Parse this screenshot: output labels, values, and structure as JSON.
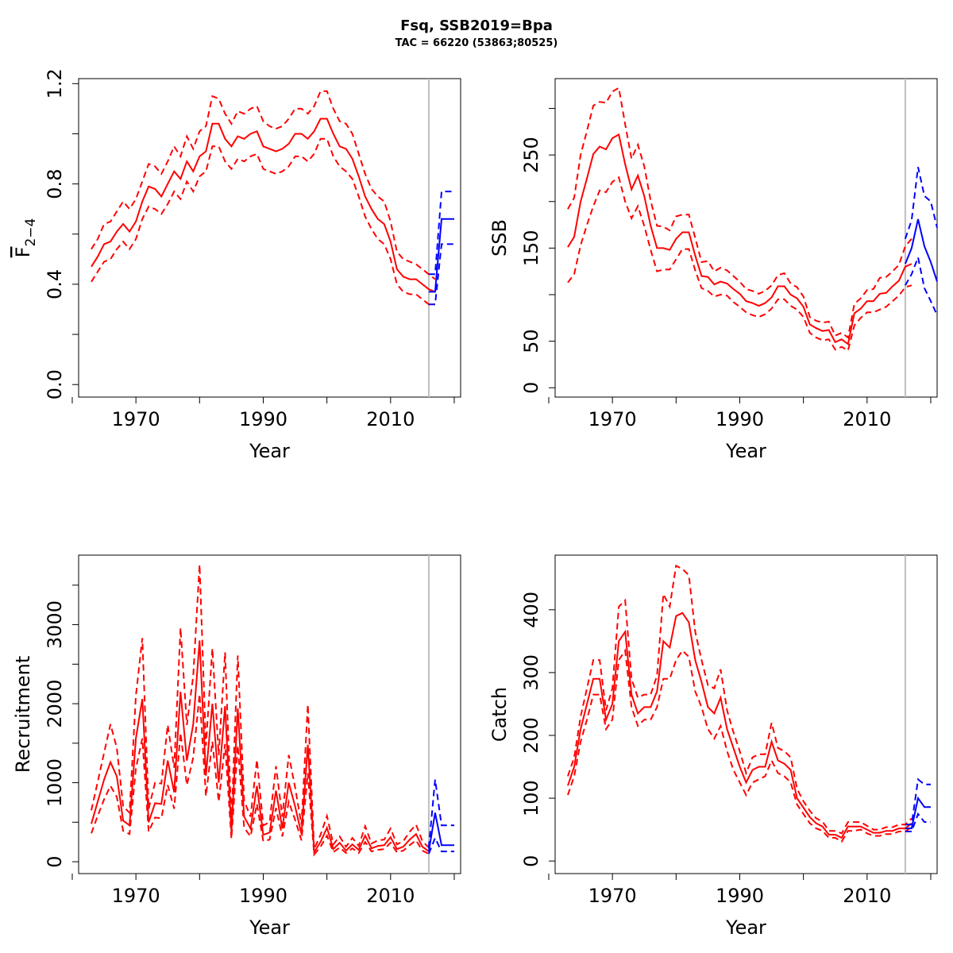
{
  "title": "Fsq, SSB2019=Bpa",
  "subtitle": "TAC = 66220 (53863;80525)",
  "colors": {
    "history": "#ff0000",
    "forecast": "#0000ff",
    "divider": "#bebebe",
    "axis": "#000000"
  },
  "divider_year": 2016,
  "chart_data": [
    {
      "type": "line",
      "id": "fbar",
      "ylabel": "F",
      "ylabel_sub": "2−4",
      "xlabel": "Year",
      "xlim": [
        1961,
        2021
      ],
      "ylim": [
        -0.05,
        1.22
      ],
      "xticks": [
        1960,
        1970,
        1980,
        1990,
        2000,
        2010,
        2020
      ],
      "xticklabels": [
        "1970",
        "1990",
        "2010"
      ],
      "xticklabel_values": [
        1970,
        1990,
        2010
      ],
      "yticks": [
        0.0,
        0.2,
        0.4,
        0.6,
        0.8,
        1.0,
        1.2
      ],
      "yticklabels": [
        "0.0",
        "0.4",
        "0.8",
        "1.2"
      ],
      "yticklabel_values": [
        0.0,
        0.4,
        0.8,
        1.2
      ],
      "history": {
        "x_start": 1963,
        "mid": [
          0.47,
          0.51,
          0.56,
          0.57,
          0.61,
          0.64,
          0.61,
          0.65,
          0.73,
          0.79,
          0.78,
          0.75,
          0.8,
          0.85,
          0.82,
          0.89,
          0.85,
          0.91,
          0.93,
          1.04,
          1.04,
          0.98,
          0.95,
          0.99,
          0.98,
          1.0,
          1.01,
          0.95,
          0.94,
          0.93,
          0.94,
          0.96,
          1.0,
          1.0,
          0.98,
          1.01,
          1.06,
          1.06,
          1.0,
          0.95,
          0.94,
          0.9,
          0.83,
          0.75,
          0.7,
          0.66,
          0.64,
          0.57,
          0.46,
          0.43,
          0.42,
          0.42,
          0.4,
          0.38,
          0.37
        ],
        "lower": [
          0.41,
          0.45,
          0.49,
          0.5,
          0.54,
          0.57,
          0.54,
          0.58,
          0.66,
          0.71,
          0.7,
          0.68,
          0.72,
          0.77,
          0.74,
          0.81,
          0.77,
          0.83,
          0.85,
          0.95,
          0.95,
          0.89,
          0.86,
          0.9,
          0.89,
          0.91,
          0.92,
          0.86,
          0.85,
          0.84,
          0.85,
          0.87,
          0.91,
          0.91,
          0.89,
          0.92,
          0.98,
          0.98,
          0.91,
          0.87,
          0.85,
          0.82,
          0.75,
          0.67,
          0.62,
          0.58,
          0.56,
          0.5,
          0.4,
          0.37,
          0.36,
          0.36,
          0.34,
          0.32,
          0.32
        ],
        "upper": [
          0.54,
          0.58,
          0.64,
          0.65,
          0.69,
          0.73,
          0.7,
          0.74,
          0.81,
          0.88,
          0.87,
          0.84,
          0.89,
          0.95,
          0.91,
          0.99,
          0.94,
          1.01,
          1.03,
          1.15,
          1.14,
          1.08,
          1.04,
          1.09,
          1.08,
          1.1,
          1.11,
          1.05,
          1.03,
          1.02,
          1.03,
          1.06,
          1.1,
          1.1,
          1.08,
          1.11,
          1.17,
          1.17,
          1.1,
          1.05,
          1.04,
          1.0,
          0.92,
          0.84,
          0.78,
          0.75,
          0.73,
          0.65,
          0.53,
          0.5,
          0.49,
          0.48,
          0.46,
          0.44,
          0.42
        ]
      },
      "forecast": {
        "x": [
          2016,
          2017,
          2018,
          2019,
          2020
        ],
        "mid": [
          0.37,
          0.37,
          0.66,
          0.66,
          0.66
        ],
        "lower": [
          0.32,
          0.32,
          0.56,
          0.56,
          0.56
        ],
        "upper": [
          0.44,
          0.44,
          0.77,
          0.77,
          0.77
        ]
      }
    },
    {
      "type": "line",
      "id": "ssb",
      "ylabel": "SSB",
      "ylabel_sub": "",
      "xlabel": "Year",
      "xlim": [
        1961,
        2021
      ],
      "ylim": [
        -10,
        332
      ],
      "xticks": [
        1960,
        1970,
        1980,
        1990,
        2000,
        2010,
        2020
      ],
      "xticklabels": [
        "1970",
        "1990",
        "2010"
      ],
      "xticklabel_values": [
        1970,
        1990,
        2010
      ],
      "yticks": [
        0,
        50,
        100,
        150,
        200,
        250,
        300
      ],
      "yticklabels": [
        "0",
        "50",
        "150",
        "250"
      ],
      "yticklabel_values": [
        0,
        50,
        150,
        250
      ],
      "history": {
        "x_start": 1963,
        "mid": [
          151,
          162,
          200,
          225,
          251,
          259,
          256,
          268,
          272,
          240,
          213,
          228,
          206,
          174,
          150,
          150,
          148,
          160,
          167,
          167,
          142,
          120,
          119,
          111,
          114,
          112,
          106,
          101,
          93,
          91,
          88,
          91,
          97,
          109,
          109,
          100,
          96,
          87,
          68,
          64,
          61,
          62,
          49,
          52,
          47,
          80,
          85,
          93,
          93,
          101,
          102,
          109,
          115,
          130,
          133
        ],
        "lower": [
          113,
          122,
          153,
          175,
          195,
          212,
          210,
          221,
          226,
          200,
          182,
          195,
          174,
          148,
          125,
          127,
          127,
          138,
          149,
          149,
          126,
          107,
          104,
          98,
          100,
          99,
          92,
          87,
          81,
          78,
          76,
          79,
          85,
          95,
          95,
          88,
          84,
          76,
          59,
          54,
          51,
          52,
          41,
          44,
          40,
          67,
          75,
          81,
          81,
          84,
          87,
          93,
          99,
          108,
          110
        ],
        "upper": [
          192,
          204,
          250,
          276,
          303,
          307,
          306,
          318,
          322,
          283,
          246,
          261,
          238,
          201,
          174,
          173,
          169,
          184,
          186,
          186,
          161,
          135,
          136,
          125,
          129,
          126,
          120,
          114,
          106,
          104,
          101,
          104,
          110,
          121,
          123,
          112,
          108,
          98,
          76,
          72,
          70,
          71,
          56,
          59,
          54,
          90,
          96,
          105,
          106,
          118,
          119,
          125,
          132,
          152,
          160
        ]
      },
      "forecast": {
        "x": [
          2016,
          2017,
          2018,
          2019,
          2020,
          2021
        ],
        "mid": [
          133,
          150,
          181,
          152,
          135,
          114
        ],
        "lower": [
          110,
          122,
          140,
          107,
          93,
          78
        ],
        "upper": [
          160,
          180,
          237,
          206,
          200,
          172
        ]
      }
    },
    {
      "type": "line",
      "id": "recruitment",
      "ylabel": "Recruitment",
      "ylabel_sub": "",
      "xlabel": "Year",
      "xlim": [
        1961,
        2021
      ],
      "ylim": [
        -150,
        3880
      ],
      "xticks": [
        1960,
        1970,
        1980,
        1990,
        2000,
        2010,
        2020
      ],
      "xticklabels": [
        "1970",
        "1990",
        "2010"
      ],
      "xticklabel_values": [
        1970,
        1990,
        2010
      ],
      "yticks": [
        0,
        500,
        1000,
        1500,
        2000,
        2500,
        3000,
        3500
      ],
      "yticklabels": [
        "0",
        "1000",
        "2000",
        "3000"
      ],
      "yticklabel_values": [
        0,
        1000,
        2000,
        3000
      ],
      "history": {
        "x_start": 1963,
        "mid": [
          480,
          760,
          1040,
          1260,
          1080,
          520,
          460,
          1560,
          2060,
          500,
          740,
          730,
          1280,
          880,
          2150,
          1280,
          1740,
          2800,
          1090,
          2000,
          1000,
          1970,
          380,
          1940,
          570,
          420,
          960,
          340,
          370,
          900,
          420,
          1000,
          700,
          350,
          1480,
          120,
          250,
          430,
          160,
          240,
          140,
          220,
          150,
          330,
          170,
          200,
          210,
          310,
          160,
          190,
          280,
          350,
          190,
          130
        ],
        "lower": [
          360,
          580,
          790,
          960,
          820,
          390,
          350,
          1180,
          1560,
          380,
          560,
          550,
          970,
          670,
          1630,
          970,
          1320,
          2120,
          830,
          1520,
          760,
          1490,
          290,
          1470,
          430,
          320,
          730,
          260,
          280,
          680,
          320,
          760,
          530,
          270,
          1120,
          90,
          190,
          330,
          120,
          180,
          110,
          170,
          110,
          250,
          130,
          150,
          160,
          240,
          120,
          140,
          210,
          270,
          140,
          100
        ],
        "upper": [
          650,
          1010,
          1380,
          1740,
          1440,
          700,
          620,
          2100,
          2830,
          670,
          1000,
          990,
          1730,
          1190,
          2960,
          1730,
          2350,
          3760,
          1470,
          2700,
          1350,
          2650,
          510,
          2610,
          770,
          570,
          1290,
          460,
          500,
          1210,
          570,
          1350,
          940,
          470,
          1990,
          160,
          340,
          580,
          220,
          320,
          190,
          300,
          200,
          450,
          230,
          270,
          280,
          420,
          220,
          260,
          380,
          470,
          260,
          180
        ]
      },
      "forecast": {
        "x": [
          2016,
          2017,
          2018,
          2019,
          2020
        ],
        "mid": [
          130,
          620,
          210,
          210,
          210
        ],
        "lower": [
          100,
          300,
          130,
          130,
          130
        ],
        "upper": [
          180,
          1040,
          460,
          460,
          460
        ]
      }
    },
    {
      "type": "line",
      "id": "catch",
      "ylabel": "Catch",
      "ylabel_sub": "",
      "xlabel": "Year",
      "xlim": [
        1961,
        2021
      ],
      "ylim": [
        -20,
        487
      ],
      "xticks": [
        1960,
        1970,
        1980,
        1990,
        2000,
        2010,
        2020
      ],
      "xticklabels": [
        "1970",
        "1990",
        "2010"
      ],
      "xticklabel_values": [
        1970,
        1990,
        2010
      ],
      "yticks": [
        0,
        100,
        200,
        300,
        400
      ],
      "yticklabels": [
        "0",
        "100",
        "200",
        "300",
        "400"
      ],
      "yticklabel_values": [
        0,
        100,
        200,
        300,
        400
      ],
      "history": {
        "x_start": 1963,
        "mid": [
          120,
          150,
          210,
          250,
          290,
          290,
          225,
          250,
          350,
          365,
          265,
          235,
          245,
          245,
          270,
          350,
          340,
          390,
          395,
          380,
          320,
          285,
          245,
          235,
          260,
          210,
          180,
          150,
          125,
          145,
          150,
          150,
          190,
          160,
          155,
          145,
          100,
          85,
          70,
          60,
          55,
          42,
          42,
          37,
          55,
          55,
          55,
          50,
          45,
          45,
          48,
          48,
          52,
          52,
          60
        ],
        "lower": [
          105,
          135,
          190,
          225,
          265,
          265,
          210,
          225,
          320,
          335,
          245,
          215,
          225,
          225,
          245,
          290,
          290,
          320,
          335,
          325,
          270,
          245,
          210,
          195,
          215,
          175,
          145,
          125,
          105,
          125,
          130,
          135,
          160,
          140,
          135,
          125,
          90,
          75,
          60,
          52,
          48,
          37,
          37,
          31,
          48,
          48,
          50,
          44,
          40,
          40,
          43,
          43,
          47,
          47,
          54
        ],
        "upper": [
          135,
          165,
          230,
          275,
          320,
          320,
          240,
          275,
          405,
          415,
          290,
          260,
          265,
          265,
          295,
          425,
          405,
          470,
          465,
          455,
          365,
          320,
          280,
          275,
          305,
          240,
          205,
          175,
          140,
          165,
          170,
          170,
          220,
          180,
          175,
          165,
          115,
          95,
          80,
          68,
          63,
          48,
          48,
          44,
          62,
          62,
          62,
          56,
          50,
          50,
          54,
          54,
          58,
          58,
          68
        ]
      },
      "forecast": {
        "x": [
          2016,
          2017,
          2018,
          2019,
          2020
        ],
        "mid": [
          52,
          52,
          100,
          86,
          86
        ],
        "lower": [
          47,
          47,
          75,
          62,
          62
        ],
        "upper": [
          58,
          58,
          130,
          122,
          122
        ]
      }
    }
  ]
}
